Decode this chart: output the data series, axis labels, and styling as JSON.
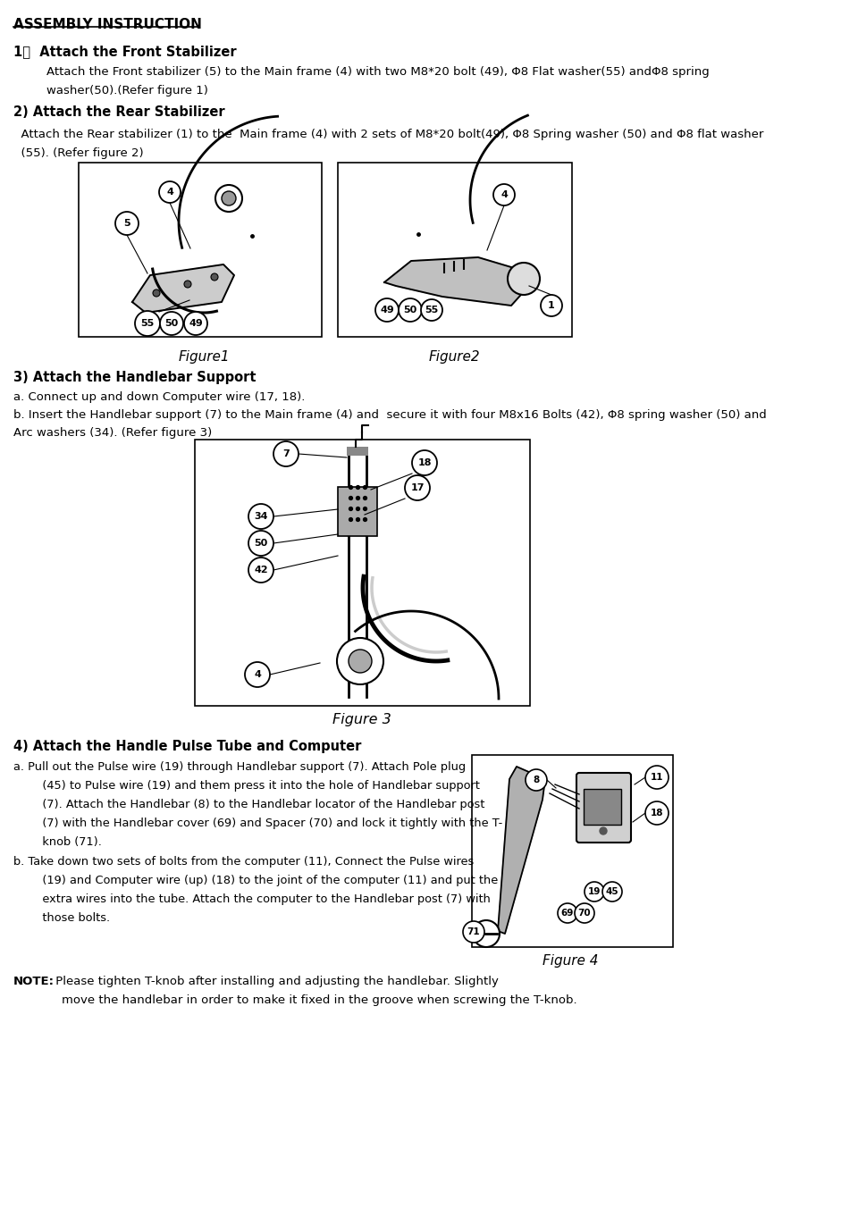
{
  "title": "ASSEMBLY INSTRUCTION",
  "section1_header": "1）  Attach the Front Stabilizer",
  "section1_body1": "    Attach the Front stabilizer (5) to the Main frame (4) with two M8*20 bolt (49), Φ8 Flat washer(55) andΦ8 spring",
  "section1_body2": "    washer(50).(Refer figure 1)",
  "section2_header": "2) Attach the Rear Stabilizer",
  "section2_body1": "  Attach the Rear stabilizer (1) to the  Main frame (4) with 2 sets of M8*20 bolt(49), Φ8 Spring washer (50) and Φ8 flat washer",
  "section2_body2": "  (55). (Refer figure 2)",
  "figure1_label": "Figure1",
  "figure2_label": "Figure2",
  "section3_header": "3) Attach the Handlebar Support",
  "section3_a": "a. Connect up and down Computer wire (17, 18).",
  "section3_b": "b. Insert the Handlebar support (7) to the Main frame (4) and  secure it with four M8x16 Bolts (42), Φ8 spring washer (50) and",
  "section3_b2": "Arc washers (34). (Refer figure 3)",
  "figure3_label": "Figure 3",
  "section4_header": "4) Attach the Handle Pulse Tube and Computer",
  "section4_a1": "a. Pull out the Pulse wire (19) through Handlebar support (7). Attach Pole plug",
  "section4_a2": "   (45) to Pulse wire (19) and them press it into the hole of Handlebar support",
  "section4_a3": "   (7). Attach the Handlebar (8) to the Handlebar locator of the Handlebar post",
  "section4_a4": "   (7) with the Handlebar cover (69) and Spacer (70) and lock it tightly with the T-",
  "section4_a5": "   knob (71).",
  "section4_b1": "b. Take down two sets of bolts from the computer (11), Connect the Pulse wires",
  "section4_b2": "   (19) and Computer wire (up) (18) to the joint of the computer (11) and put the",
  "section4_b3": "   extra wires into the tube. Attach the computer to the Handlebar post (7) with",
  "section4_b4": "   those bolts.",
  "figure4_label": "Figure 4",
  "note_bold": "NOTE:",
  "note1": " Please tighten T-knob after installing and adjusting the handlebar. Slightly",
  "note2": "        move the handlebar in order to make it fixed in the groove when screwing the T-knob.",
  "bg_color": "#ffffff",
  "text_color": "#000000"
}
